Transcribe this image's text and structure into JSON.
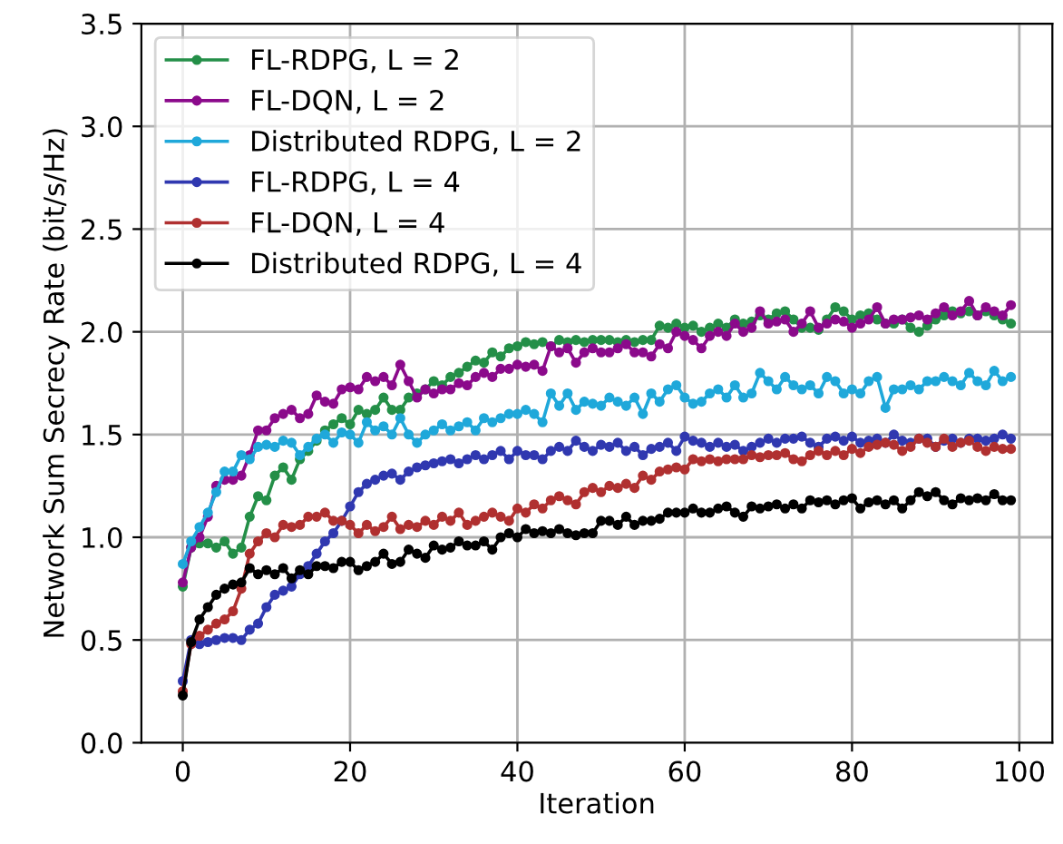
{
  "chart_data": {
    "type": "line",
    "xlabel": "Iteration",
    "ylabel": "Network Sum Secrecy Rate (bit/s/Hz)",
    "xlim": [
      -4.95,
      103.95
    ],
    "xticks": [
      0,
      20,
      40,
      60,
      80,
      100
    ],
    "ylim": [
      0.0,
      3.5
    ],
    "yticks": [
      {
        "value": 0,
        "label": "0.0"
      },
      {
        "value": 0.5,
        "label": "0.5"
      },
      {
        "value": 1,
        "label": "1.0"
      },
      {
        "value": 1.5,
        "label": "1.5"
      },
      {
        "value": 2,
        "label": "2.0"
      },
      {
        "value": 2.5,
        "label": "2.5"
      },
      {
        "value": 3,
        "label": "3.0"
      },
      {
        "value": 3.5,
        "label": "3.5"
      }
    ],
    "grid": true,
    "legend": "top left",
    "marker": "circle",
    "line_style": "solid",
    "x": [
      0,
      1,
      2,
      3,
      4,
      5,
      6,
      7,
      8,
      9,
      10,
      11,
      12,
      13,
      14,
      15,
      16,
      17,
      18,
      19,
      20,
      21,
      22,
      23,
      24,
      25,
      26,
      27,
      28,
      29,
      30,
      31,
      32,
      33,
      34,
      35,
      36,
      37,
      38,
      39,
      40,
      41,
      42,
      43,
      44,
      45,
      46,
      47,
      48,
      49,
      50,
      51,
      52,
      53,
      54,
      55,
      56,
      57,
      58,
      59,
      60,
      61,
      62,
      63,
      64,
      65,
      66,
      67,
      68,
      69,
      70,
      71,
      72,
      73,
      74,
      75,
      76,
      77,
      78,
      79,
      80,
      81,
      82,
      83,
      84,
      85,
      86,
      87,
      88,
      89,
      90,
      91,
      92,
      93,
      94,
      95,
      96,
      97,
      98,
      99
    ],
    "series": [
      {
        "name": "FL-RDPG, L = 2",
        "color": "#248f48",
        "values": [
          0.76,
          0.95,
          0.97,
          0.97,
          0.95,
          0.98,
          0.92,
          0.95,
          1.1,
          1.2,
          1.18,
          1.3,
          1.34,
          1.28,
          1.38,
          1.42,
          1.47,
          1.52,
          1.55,
          1.58,
          1.55,
          1.62,
          1.6,
          1.62,
          1.68,
          1.62,
          1.62,
          1.68,
          1.7,
          1.72,
          1.76,
          1.74,
          1.78,
          1.8,
          1.83,
          1.86,
          1.85,
          1.9,
          1.88,
          1.92,
          1.93,
          1.95,
          1.94,
          1.95,
          1.93,
          1.96,
          1.95,
          1.96,
          1.95,
          1.96,
          1.96,
          1.96,
          1.95,
          1.96,
          1.95,
          1.96,
          1.96,
          2.03,
          2.02,
          2.04,
          2.02,
          2.03,
          2.0,
          2.02,
          2.04,
          2.02,
          2.06,
          2.04,
          2.05,
          2.08,
          2.06,
          2.09,
          2.1,
          2.06,
          2.02,
          2.02,
          2.01,
          2.06,
          2.12,
          2.1,
          2.06,
          2.08,
          2.09,
          2.06,
          2.04,
          2.04,
          2.06,
          2.02,
          2.0,
          2.03,
          2.06,
          2.08,
          2.1,
          2.09,
          2.1,
          2.08,
          2.1,
          2.08,
          2.06,
          2.04
        ]
      },
      {
        "name": "FL-DQN, L = 2",
        "color": "#8b0a8b",
        "values": [
          0.78,
          0.95,
          1.0,
          1.1,
          1.25,
          1.28,
          1.28,
          1.3,
          1.4,
          1.52,
          1.52,
          1.58,
          1.6,
          1.62,
          1.58,
          1.6,
          1.69,
          1.66,
          1.65,
          1.72,
          1.73,
          1.72,
          1.78,
          1.76,
          1.78,
          1.74,
          1.84,
          1.76,
          1.68,
          1.72,
          1.7,
          1.72,
          1.72,
          1.75,
          1.74,
          1.78,
          1.8,
          1.78,
          1.82,
          1.82,
          1.84,
          1.83,
          1.84,
          1.81,
          1.93,
          1.9,
          1.92,
          1.85,
          1.9,
          1.92,
          1.9,
          1.9,
          1.92,
          1.94,
          1.9,
          1.9,
          1.88,
          1.94,
          1.92,
          2.0,
          1.98,
          1.96,
          1.92,
          1.98,
          2.0,
          1.98,
          2.04,
          2.0,
          2.02,
          2.1,
          2.04,
          2.05,
          2.06,
          2.0,
          2.04,
          2.1,
          2.02,
          2.04,
          2.06,
          2.05,
          2.02,
          2.04,
          2.06,
          2.12,
          2.04,
          2.06,
          2.06,
          2.07,
          2.08,
          2.06,
          2.09,
          2.12,
          2.08,
          2.1,
          2.15,
          2.08,
          2.12,
          2.1,
          2.08,
          2.13
        ]
      },
      {
        "name": "Distributed RDPG, L = 2",
        "color": "#1fa8da",
        "values": [
          0.87,
          0.98,
          1.05,
          1.12,
          1.22,
          1.32,
          1.32,
          1.4,
          1.38,
          1.44,
          1.45,
          1.44,
          1.47,
          1.46,
          1.4,
          1.44,
          1.48,
          1.5,
          1.46,
          1.51,
          1.5,
          1.46,
          1.56,
          1.52,
          1.54,
          1.5,
          1.58,
          1.5,
          1.46,
          1.5,
          1.52,
          1.55,
          1.52,
          1.54,
          1.56,
          1.52,
          1.58,
          1.56,
          1.58,
          1.6,
          1.6,
          1.62,
          1.6,
          1.56,
          1.7,
          1.64,
          1.7,
          1.62,
          1.66,
          1.65,
          1.64,
          1.68,
          1.66,
          1.64,
          1.68,
          1.6,
          1.7,
          1.66,
          1.72,
          1.74,
          1.68,
          1.65,
          1.66,
          1.7,
          1.72,
          1.68,
          1.74,
          1.68,
          1.7,
          1.8,
          1.76,
          1.72,
          1.78,
          1.74,
          1.72,
          1.74,
          1.7,
          1.78,
          1.76,
          1.7,
          1.72,
          1.7,
          1.76,
          1.78,
          1.63,
          1.72,
          1.72,
          1.74,
          1.72,
          1.76,
          1.76,
          1.78,
          1.76,
          1.74,
          1.8,
          1.76,
          1.74,
          1.81,
          1.76,
          1.78
        ]
      },
      {
        "name": "FL-RDPG, L = 4",
        "color": "#3038b0",
        "values": [
          0.3,
          0.5,
          0.48,
          0.49,
          0.5,
          0.51,
          0.51,
          0.5,
          0.55,
          0.58,
          0.66,
          0.72,
          0.74,
          0.76,
          0.82,
          0.86,
          0.92,
          0.98,
          1.02,
          1.08,
          1.15,
          1.22,
          1.26,
          1.28,
          1.3,
          1.31,
          1.28,
          1.32,
          1.34,
          1.35,
          1.36,
          1.37,
          1.38,
          1.36,
          1.38,
          1.4,
          1.38,
          1.4,
          1.42,
          1.38,
          1.42,
          1.4,
          1.4,
          1.38,
          1.42,
          1.44,
          1.42,
          1.47,
          1.44,
          1.42,
          1.45,
          1.44,
          1.46,
          1.42,
          1.44,
          1.4,
          1.43,
          1.44,
          1.46,
          1.42,
          1.49,
          1.47,
          1.46,
          1.44,
          1.46,
          1.44,
          1.45,
          1.42,
          1.44,
          1.46,
          1.48,
          1.46,
          1.48,
          1.48,
          1.49,
          1.46,
          1.44,
          1.48,
          1.49,
          1.47,
          1.49,
          1.46,
          1.47,
          1.48,
          1.46,
          1.5,
          1.47,
          1.46,
          1.48,
          1.48,
          1.44,
          1.47,
          1.48,
          1.46,
          1.48,
          1.48,
          1.47,
          1.48,
          1.5,
          1.48
        ]
      },
      {
        "name": "FL-DQN, L = 4",
        "color": "#b03030",
        "values": [
          0.25,
          0.48,
          0.52,
          0.55,
          0.58,
          0.6,
          0.64,
          0.75,
          0.92,
          0.98,
          1.02,
          1.0,
          1.06,
          1.05,
          1.06,
          1.1,
          1.1,
          1.12,
          1.08,
          1.08,
          1.06,
          1.02,
          1.06,
          1.03,
          1.05,
          1.1,
          1.04,
          1.06,
          1.05,
          1.08,
          1.06,
          1.1,
          1.08,
          1.12,
          1.06,
          1.08,
          1.1,
          1.12,
          1.1,
          1.08,
          1.14,
          1.12,
          1.16,
          1.14,
          1.18,
          1.2,
          1.18,
          1.16,
          1.22,
          1.24,
          1.22,
          1.25,
          1.24,
          1.26,
          1.24,
          1.3,
          1.28,
          1.32,
          1.33,
          1.34,
          1.33,
          1.38,
          1.37,
          1.38,
          1.37,
          1.38,
          1.38,
          1.38,
          1.4,
          1.39,
          1.4,
          1.4,
          1.41,
          1.38,
          1.37,
          1.4,
          1.42,
          1.4,
          1.42,
          1.4,
          1.43,
          1.41,
          1.44,
          1.45,
          1.46,
          1.45,
          1.42,
          1.44,
          1.48,
          1.46,
          1.44,
          1.48,
          1.44,
          1.46,
          1.47,
          1.44,
          1.42,
          1.44,
          1.43,
          1.43
        ]
      },
      {
        "name": "Distributed RDPG, L = 4",
        "color": "#000000",
        "values": [
          0.23,
          0.49,
          0.6,
          0.66,
          0.72,
          0.75,
          0.77,
          0.78,
          0.85,
          0.82,
          0.84,
          0.82,
          0.85,
          0.8,
          0.84,
          0.82,
          0.86,
          0.86,
          0.85,
          0.88,
          0.88,
          0.84,
          0.86,
          0.88,
          0.92,
          0.87,
          0.88,
          0.94,
          0.92,
          0.9,
          0.96,
          0.94,
          0.95,
          0.98,
          0.96,
          0.96,
          0.98,
          0.94,
          1.0,
          1.02,
          1.0,
          1.04,
          1.02,
          1.03,
          1.02,
          1.04,
          1.02,
          1.01,
          1.02,
          1.02,
          1.08,
          1.08,
          1.06,
          1.1,
          1.06,
          1.08,
          1.08,
          1.09,
          1.12,
          1.12,
          1.12,
          1.14,
          1.12,
          1.12,
          1.14,
          1.15,
          1.12,
          1.1,
          1.15,
          1.14,
          1.15,
          1.16,
          1.14,
          1.16,
          1.14,
          1.18,
          1.17,
          1.18,
          1.16,
          1.18,
          1.19,
          1.14,
          1.17,
          1.18,
          1.16,
          1.18,
          1.14,
          1.18,
          1.22,
          1.2,
          1.22,
          1.18,
          1.16,
          1.19,
          1.18,
          1.19,
          1.18,
          1.21,
          1.18,
          1.18
        ]
      }
    ]
  }
}
